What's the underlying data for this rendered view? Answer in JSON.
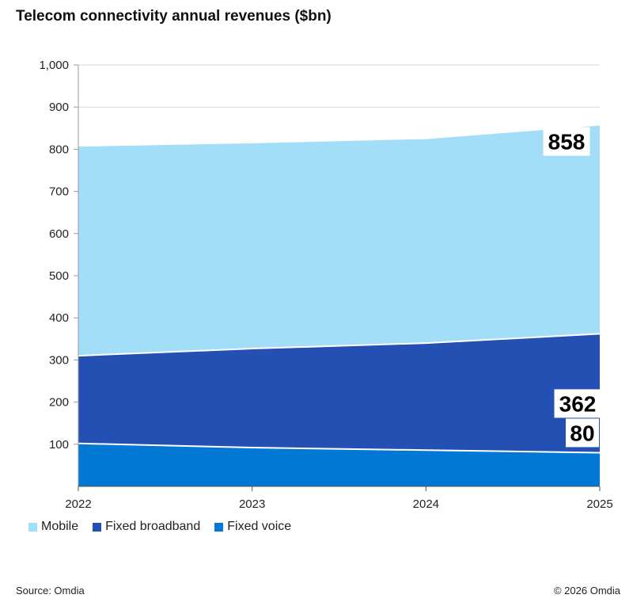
{
  "chart_data": {
    "type": "area",
    "stacked": true,
    "title": "Telecom connectivity annual revenues ($bn)",
    "x": [
      "2022",
      "2023",
      "2024",
      "2025"
    ],
    "ylim": [
      0,
      1000
    ],
    "yticks": [
      "1,000",
      "900",
      "800",
      "700",
      "600",
      "500",
      "400",
      "300",
      "200",
      "100"
    ],
    "grid": true,
    "legend_position": "bottom-left",
    "series": [
      {
        "name": "Fixed voice",
        "color": "#0078D4",
        "values": [
          102,
          92,
          86,
          80
        ]
      },
      {
        "name": "Fixed broadband",
        "color": "#2450B4",
        "values": [
          208,
          235,
          254,
          282
        ]
      },
      {
        "name": "Mobile",
        "color": "#A2DEF7",
        "values": [
          498,
          489,
          486,
          496
        ]
      }
    ],
    "end_labels": [
      {
        "text": "858",
        "value": 858
      },
      {
        "text": "362",
        "value": 362
      },
      {
        "text": "80",
        "value": 80
      }
    ],
    "legend": [
      {
        "label": "Mobile",
        "color": "#A2DEF7"
      },
      {
        "label": "Fixed broadband",
        "color": "#2450B4"
      },
      {
        "label": "Fixed voice",
        "color": "#0078D4"
      }
    ]
  },
  "footer": {
    "source": "Source: Omdia",
    "copyright": "© 2026 Omdia"
  }
}
